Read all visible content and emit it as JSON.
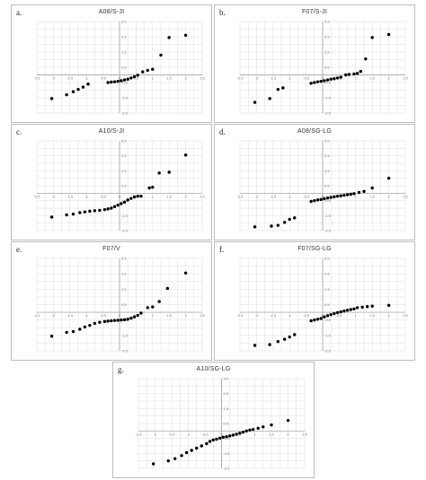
{
  "chart_data": [
    {
      "type": "scatter",
      "letter": "a.",
      "title": "A08/S-JI",
      "xlim": [
        -2.5,
        2.5
      ],
      "ylim": [
        -2.5,
        3.5
      ],
      "xticks": [
        "-2.5",
        "-2",
        "-1.5",
        "-1",
        "-0.5",
        "0",
        "0.5",
        "1",
        "1.5",
        "2",
        "2.5"
      ],
      "yticks": [
        "3.5",
        "2.5",
        "1.5",
        "0.5",
        "-0.5",
        "-1.5",
        "-2.5"
      ],
      "grid": true,
      "points": [
        [
          -2.05,
          -1.55
        ],
        [
          -1.6,
          -1.3
        ],
        [
          -1.4,
          -1.1
        ],
        [
          -1.25,
          -0.95
        ],
        [
          -1.1,
          -0.8
        ],
        [
          -0.95,
          -0.6
        ],
        [
          -0.35,
          -0.5
        ],
        [
          -0.25,
          -0.47
        ],
        [
          -0.15,
          -0.45
        ],
        [
          -0.05,
          -0.42
        ],
        [
          0.05,
          -0.38
        ],
        [
          0.15,
          -0.33
        ],
        [
          0.25,
          -0.28
        ],
        [
          0.35,
          -0.2
        ],
        [
          0.45,
          -0.12
        ],
        [
          0.55,
          -0.02
        ],
        [
          0.7,
          0.2
        ],
        [
          0.85,
          0.3
        ],
        [
          1.0,
          0.37
        ],
        [
          1.25,
          1.3
        ],
        [
          1.5,
          2.45
        ],
        [
          2.0,
          2.6
        ]
      ]
    },
    {
      "type": "scatter",
      "letter": "b.",
      "title": "F07/S-JI",
      "xlim": [
        -2.5,
        2.5
      ],
      "ylim": [
        -2.5,
        3.5
      ],
      "xticks": [
        "-2.5",
        "-2",
        "-1.5",
        "-1",
        "-0.5",
        "0",
        "0.5",
        "1",
        "1.5",
        "2",
        "2.5"
      ],
      "yticks": [
        "3.5",
        "2.5",
        "1.5",
        "0.5",
        "-0.5",
        "-1.5",
        "-2.5"
      ],
      "grid": true,
      "points": [
        [
          -2.05,
          -1.8
        ],
        [
          -1.6,
          -1.55
        ],
        [
          -1.35,
          -0.95
        ],
        [
          -1.2,
          -0.85
        ],
        [
          -0.35,
          -0.55
        ],
        [
          -0.25,
          -0.5
        ],
        [
          -0.15,
          -0.45
        ],
        [
          -0.05,
          -0.42
        ],
        [
          0.05,
          -0.38
        ],
        [
          0.15,
          -0.33
        ],
        [
          0.25,
          -0.28
        ],
        [
          0.35,
          -0.25
        ],
        [
          0.45,
          -0.2
        ],
        [
          0.55,
          -0.15
        ],
        [
          0.7,
          0.0
        ],
        [
          0.8,
          0.03
        ],
        [
          0.95,
          0.06
        ],
        [
          1.05,
          0.1
        ],
        [
          1.15,
          0.23
        ],
        [
          1.3,
          1.05
        ],
        [
          1.5,
          2.45
        ],
        [
          2.0,
          2.65
        ]
      ]
    },
    {
      "type": "scatter",
      "letter": "c.",
      "title": "A10/S-JI",
      "xlim": [
        -2.5,
        2.5
      ],
      "ylim": [
        -2.5,
        3.5
      ],
      "xticks": [
        "-2.5",
        "-2",
        "-1.5",
        "-1",
        "-0.5",
        "0",
        "0.5",
        "1",
        "1.5",
        "2",
        "2.5"
      ],
      "yticks": [
        "3.5",
        "2.5",
        "1.5",
        "0.5",
        "-0.5",
        "-1.5",
        "-2.5"
      ],
      "grid": true,
      "points": [
        [
          -2.05,
          -1.6
        ],
        [
          -1.6,
          -1.45
        ],
        [
          -1.4,
          -1.4
        ],
        [
          -1.2,
          -1.3
        ],
        [
          -1.05,
          -1.25
        ],
        [
          -0.9,
          -1.2
        ],
        [
          -0.75,
          -1.17
        ],
        [
          -0.6,
          -1.15
        ],
        [
          -0.45,
          -1.1
        ],
        [
          -0.35,
          -1.05
        ],
        [
          -0.25,
          -1.0
        ],
        [
          -0.15,
          -0.9
        ],
        [
          -0.05,
          -0.8
        ],
        [
          0.05,
          -0.7
        ],
        [
          0.15,
          -0.6
        ],
        [
          0.25,
          -0.45
        ],
        [
          0.35,
          -0.35
        ],
        [
          0.45,
          -0.25
        ],
        [
          0.55,
          -0.2
        ],
        [
          0.65,
          -0.2
        ],
        [
          0.9,
          0.35
        ],
        [
          1.0,
          0.4
        ],
        [
          1.2,
          1.35
        ],
        [
          1.5,
          1.4
        ],
        [
          2.0,
          2.55
        ]
      ]
    },
    {
      "type": "scatter",
      "letter": "d.",
      "title": "A08/SG-LG",
      "xlim": [
        -2.5,
        2.5
      ],
      "ylim": [
        -2.5,
        3.5
      ],
      "xticks": [
        "-2.5",
        "-2",
        "-1.5",
        "-1",
        "-0.5",
        "0",
        "0.5",
        "1",
        "1.5",
        "2",
        "2.5"
      ],
      "yticks": [
        "3.5",
        "2.5",
        "1.5",
        "0.5",
        "-0.5",
        "-1.5",
        "-2.5"
      ],
      "grid": true,
      "points": [
        [
          -2.05,
          -2.25
        ],
        [
          -1.55,
          -2.2
        ],
        [
          -1.35,
          -2.15
        ],
        [
          -1.15,
          -1.95
        ],
        [
          -1.0,
          -1.75
        ],
        [
          -0.85,
          -1.65
        ],
        [
          -0.35,
          -0.55
        ],
        [
          -0.25,
          -0.5
        ],
        [
          -0.15,
          -0.45
        ],
        [
          -0.05,
          -0.42
        ],
        [
          0.05,
          -0.37
        ],
        [
          0.15,
          -0.32
        ],
        [
          0.25,
          -0.28
        ],
        [
          0.35,
          -0.24
        ],
        [
          0.45,
          -0.2
        ],
        [
          0.55,
          -0.17
        ],
        [
          0.65,
          -0.14
        ],
        [
          0.75,
          -0.1
        ],
        [
          0.85,
          -0.07
        ],
        [
          0.95,
          -0.03
        ],
        [
          1.1,
          0.05
        ],
        [
          1.25,
          0.12
        ],
        [
          1.5,
          0.35
        ],
        [
          2.0,
          1.0
        ]
      ]
    },
    {
      "type": "scatter",
      "letter": "e.",
      "title": "F07/V",
      "xlim": [
        -2.5,
        2.5
      ],
      "ylim": [
        -2.5,
        3.5
      ],
      "xticks": [
        "-2.5",
        "-2",
        "-1.5",
        "-1",
        "-0.5",
        "0",
        "0.5",
        "1",
        "1.5",
        "2",
        "2.5"
      ],
      "yticks": [
        "3.5",
        "2.5",
        "1.5",
        "0.5",
        "-0.5",
        "-1.5",
        "-2.5"
      ],
      "grid": true,
      "points": [
        [
          -2.05,
          -1.55
        ],
        [
          -1.6,
          -1.3
        ],
        [
          -1.4,
          -1.25
        ],
        [
          -1.2,
          -1.1
        ],
        [
          -1.05,
          -0.95
        ],
        [
          -0.9,
          -0.85
        ],
        [
          -0.75,
          -0.72
        ],
        [
          -0.6,
          -0.65
        ],
        [
          -0.45,
          -0.6
        ],
        [
          -0.35,
          -0.57
        ],
        [
          -0.25,
          -0.55
        ],
        [
          -0.15,
          -0.53
        ],
        [
          -0.05,
          -0.52
        ],
        [
          0.05,
          -0.5
        ],
        [
          0.15,
          -0.48
        ],
        [
          0.25,
          -0.45
        ],
        [
          0.35,
          -0.38
        ],
        [
          0.45,
          -0.3
        ],
        [
          0.55,
          -0.2
        ],
        [
          0.65,
          -0.05
        ],
        [
          0.85,
          0.3
        ],
        [
          1.0,
          0.35
        ],
        [
          1.2,
          0.7
        ],
        [
          1.45,
          1.55
        ],
        [
          2.0,
          2.55
        ]
      ]
    },
    {
      "type": "scatter",
      "letter": "f.",
      "title": "F07/SG-LG",
      "xlim": [
        -2.5,
        2.5
      ],
      "ylim": [
        -2.5,
        3.5
      ],
      "xticks": [
        "-2.5",
        "-2",
        "-1.5",
        "-1",
        "-0.5",
        "0",
        "0.5",
        "1",
        "1.5",
        "2",
        "2.5"
      ],
      "yticks": [
        "3.5",
        "2.5",
        "1.5",
        "0.5",
        "-0.5",
        "-1.5",
        "-2.5"
      ],
      "grid": true,
      "points": [
        [
          -2.05,
          -2.15
        ],
        [
          -1.6,
          -2.1
        ],
        [
          -1.35,
          -1.9
        ],
        [
          -1.15,
          -1.75
        ],
        [
          -1.0,
          -1.6
        ],
        [
          -0.85,
          -1.45
        ],
        [
          -0.35,
          -0.55
        ],
        [
          -0.25,
          -0.5
        ],
        [
          -0.15,
          -0.45
        ],
        [
          -0.05,
          -0.4
        ],
        [
          0.05,
          -0.3
        ],
        [
          0.15,
          -0.22
        ],
        [
          0.25,
          -0.15
        ],
        [
          0.35,
          -0.08
        ],
        [
          0.45,
          -0.02
        ],
        [
          0.55,
          0.03
        ],
        [
          0.65,
          0.08
        ],
        [
          0.75,
          0.13
        ],
        [
          0.85,
          0.18
        ],
        [
          0.95,
          0.22
        ],
        [
          1.05,
          0.3
        ],
        [
          1.2,
          0.33
        ],
        [
          1.35,
          0.37
        ],
        [
          1.5,
          0.4
        ],
        [
          2.0,
          0.45
        ]
      ]
    },
    {
      "type": "scatter",
      "letter": "g.",
      "title": "A10/SG-LG",
      "xlim": [
        -2.5,
        2.5
      ],
      "ylim": [
        -2.5,
        3.5
      ],
      "xticks": [
        "-2.5",
        "-2",
        "-1.5",
        "-1",
        "-0.5",
        "0",
        "0.5",
        "1",
        "1.5",
        "2",
        "2.5"
      ],
      "yticks": [
        "3.5",
        "2.5",
        "1.5",
        "0.5",
        "-0.5",
        "-1.5",
        "-2.5"
      ],
      "grid": true,
      "points": [
        [
          -2.05,
          -2.2
        ],
        [
          -1.6,
          -2.0
        ],
        [
          -1.4,
          -1.85
        ],
        [
          -1.2,
          -1.65
        ],
        [
          -1.05,
          -1.45
        ],
        [
          -0.9,
          -1.3
        ],
        [
          -0.75,
          -1.15
        ],
        [
          -0.6,
          -1.0
        ],
        [
          -0.45,
          -0.85
        ],
        [
          -0.35,
          -0.7
        ],
        [
          -0.25,
          -0.6
        ],
        [
          -0.15,
          -0.55
        ],
        [
          -0.05,
          -0.48
        ],
        [
          0.05,
          -0.42
        ],
        [
          0.15,
          -0.38
        ],
        [
          0.25,
          -0.33
        ],
        [
          0.35,
          -0.28
        ],
        [
          0.45,
          -0.22
        ],
        [
          0.55,
          -0.15
        ],
        [
          0.65,
          -0.08
        ],
        [
          0.75,
          0.0
        ],
        [
          0.85,
          0.06
        ],
        [
          0.95,
          0.1
        ],
        [
          1.1,
          0.18
        ],
        [
          1.25,
          0.27
        ],
        [
          1.5,
          0.4
        ],
        [
          2.0,
          0.7
        ]
      ]
    }
  ]
}
